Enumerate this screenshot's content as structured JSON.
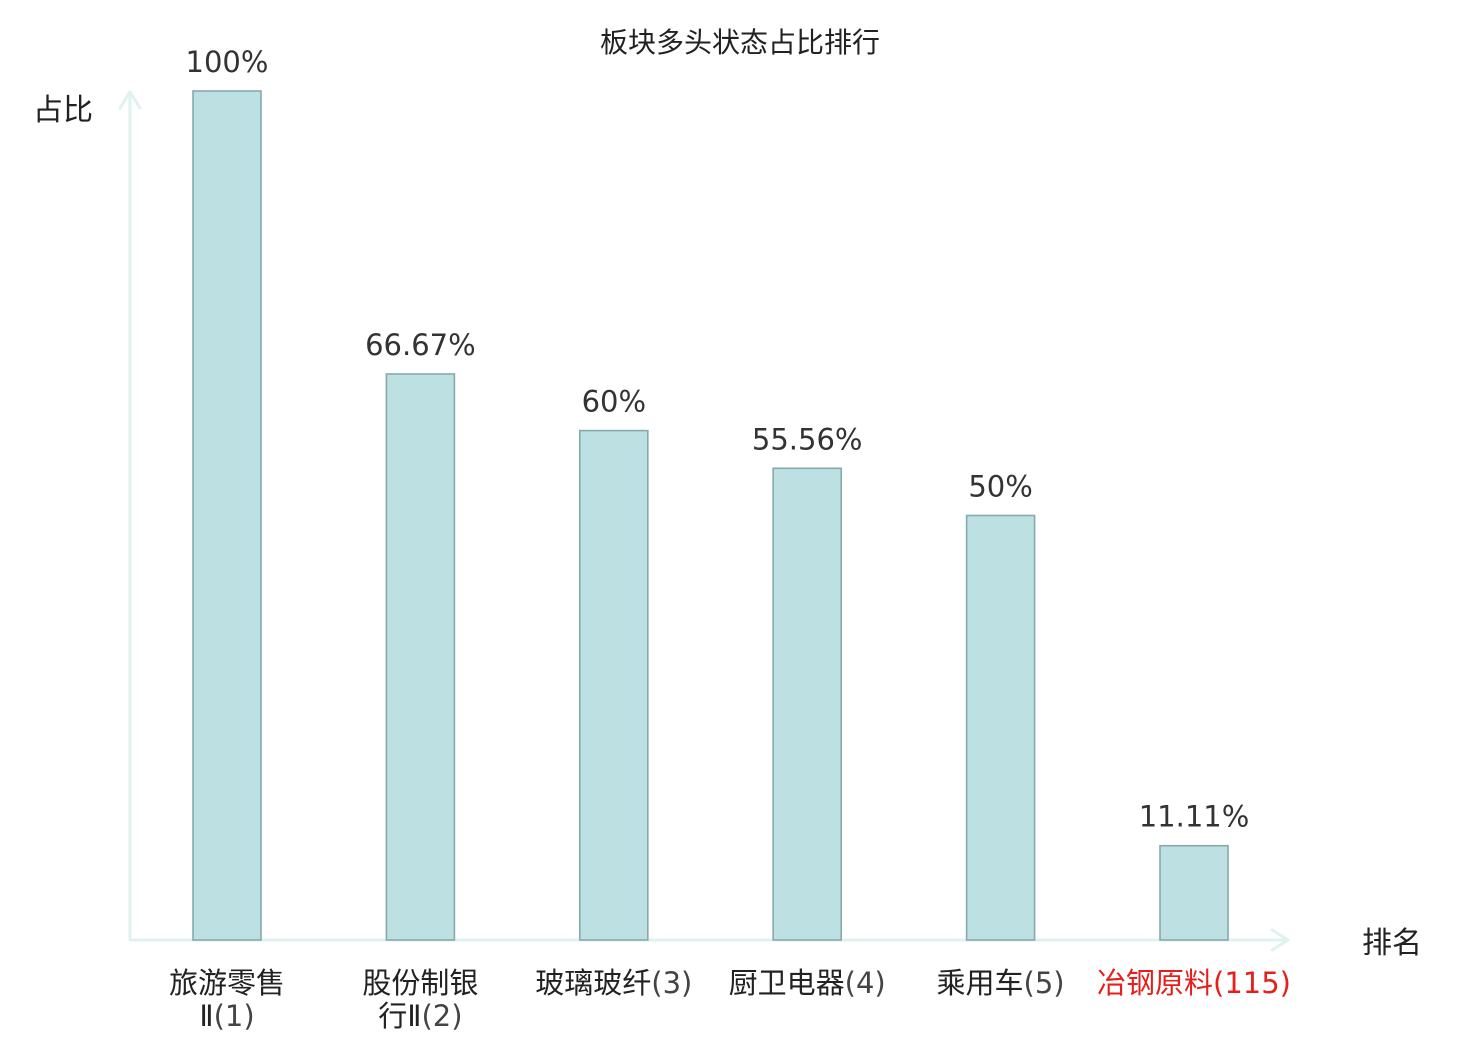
{
  "chart_data": {
    "type": "bar",
    "title": "板块多头状态占比排行",
    "ylabel": "占比",
    "xlabel": "排名",
    "ylim": [
      0,
      100
    ],
    "grid": false,
    "categories": [
      {
        "name": "旅游零售Ⅱ",
        "rank": "(1)",
        "highlight": false
      },
      {
        "name": "股份制银行Ⅱ",
        "rank": "(2)",
        "highlight": false
      },
      {
        "name": "玻璃玻纤",
        "rank": "(3)",
        "highlight": false
      },
      {
        "name": "厨卫电器",
        "rank": "(4)",
        "highlight": false
      },
      {
        "name": "乘用车",
        "rank": "(5)",
        "highlight": false
      },
      {
        "name": "冶钢原料",
        "rank": "(115)",
        "highlight": true
      }
    ],
    "values": [
      100,
      66.67,
      60,
      55.56,
      50,
      11.11
    ],
    "value_labels": [
      "100%",
      "66.67%",
      "60%",
      "55.56%",
      "50%",
      "11.11%"
    ]
  },
  "colors": {
    "bar_fill": "#bde0e2",
    "bar_stroke": "#86a9ab",
    "axis": "#dff2ef",
    "text": "#222222",
    "value_text": "#333333",
    "highlight": "#e5201c"
  }
}
